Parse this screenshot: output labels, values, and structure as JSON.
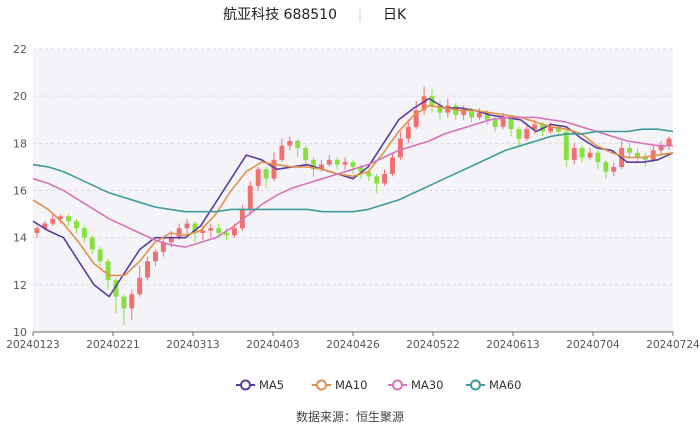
{
  "chart_data": {
    "type": "candlestick",
    "title": {
      "name": "航亚科技",
      "code": "688510",
      "period": "日K"
    },
    "ylim": [
      10,
      22
    ],
    "y_ticks": [
      "10",
      "12",
      "14",
      "16",
      "18",
      "20",
      "22"
    ],
    "x_ticks": [
      "20240123",
      "20240221",
      "20240313",
      "20240403",
      "20240426",
      "20240522",
      "20240613",
      "20240704",
      "20240724"
    ],
    "legend": {
      "placement": "bottom-center",
      "items": [
        {
          "name": "MA5",
          "color": "#5b3c9c"
        },
        {
          "name": "MA10",
          "color": "#e0914a"
        },
        {
          "name": "MA30",
          "color": "#d873b8"
        },
        {
          "name": "MA60",
          "color": "#3f9b9b"
        }
      ]
    },
    "grid": "horizontal",
    "plot_background": "#f3f3f8",
    "up_color": "#f07070",
    "down_color": "#88e040",
    "series": [
      {
        "name": "MA5",
        "values": [
          [
            0,
            14.7
          ],
          [
            5,
            14.3
          ],
          [
            10,
            14.0
          ],
          [
            15,
            13.0
          ],
          [
            20,
            12.0
          ],
          [
            25,
            11.5
          ],
          [
            30,
            12.5
          ],
          [
            35,
            13.5
          ],
          [
            40,
            14.0
          ],
          [
            45,
            14.0
          ],
          [
            50,
            14.0
          ],
          [
            55,
            14.5
          ],
          [
            60,
            15.5
          ],
          [
            65,
            16.5
          ],
          [
            70,
            17.5
          ],
          [
            75,
            17.3
          ],
          [
            80,
            16.9
          ],
          [
            85,
            17.0
          ],
          [
            90,
            17.1
          ],
          [
            95,
            16.9
          ],
          [
            100,
            16.7
          ],
          [
            105,
            16.5
          ],
          [
            110,
            17.0
          ],
          [
            115,
            18.0
          ],
          [
            120,
            19.0
          ],
          [
            125,
            19.5
          ],
          [
            130,
            19.9
          ],
          [
            135,
            19.5
          ],
          [
            140,
            19.5
          ],
          [
            145,
            19.4
          ],
          [
            150,
            19.2
          ],
          [
            155,
            19.1
          ],
          [
            160,
            19.0
          ],
          [
            165,
            18.5
          ],
          [
            170,
            18.8
          ],
          [
            175,
            18.7
          ],
          [
            180,
            18.2
          ],
          [
            185,
            17.8
          ],
          [
            190,
            17.7
          ],
          [
            195,
            17.2
          ],
          [
            200,
            17.2
          ],
          [
            205,
            17.3
          ],
          [
            210,
            17.6
          ]
        ]
      },
      {
        "name": "MA10",
        "values": [
          [
            0,
            15.6
          ],
          [
            5,
            15.2
          ],
          [
            10,
            14.6
          ],
          [
            15,
            13.8
          ],
          [
            20,
            12.9
          ],
          [
            25,
            12.4
          ],
          [
            30,
            12.4
          ],
          [
            35,
            13.0
          ],
          [
            40,
            13.8
          ],
          [
            45,
            14.2
          ],
          [
            50,
            14.1
          ],
          [
            55,
            14.3
          ],
          [
            60,
            15.0
          ],
          [
            65,
            16.0
          ],
          [
            70,
            16.8
          ],
          [
            75,
            17.2
          ],
          [
            80,
            17.1
          ],
          [
            85,
            17.0
          ],
          [
            90,
            17.0
          ],
          [
            95,
            16.9
          ],
          [
            100,
            16.7
          ],
          [
            105,
            16.6
          ],
          [
            110,
            16.8
          ],
          [
            115,
            17.6
          ],
          [
            120,
            18.5
          ],
          [
            125,
            19.2
          ],
          [
            130,
            19.6
          ],
          [
            135,
            19.5
          ],
          [
            140,
            19.4
          ],
          [
            145,
            19.4
          ],
          [
            150,
            19.3
          ],
          [
            155,
            19.2
          ],
          [
            160,
            19.1
          ],
          [
            165,
            18.9
          ],
          [
            170,
            18.7
          ],
          [
            175,
            18.6
          ],
          [
            180,
            18.4
          ],
          [
            185,
            17.9
          ],
          [
            190,
            17.6
          ],
          [
            195,
            17.4
          ],
          [
            200,
            17.4
          ],
          [
            205,
            17.5
          ],
          [
            210,
            17.6
          ]
        ]
      },
      {
        "name": "MA30",
        "values": [
          [
            0,
            16.5
          ],
          [
            5,
            16.3
          ],
          [
            10,
            16.0
          ],
          [
            15,
            15.6
          ],
          [
            20,
            15.2
          ],
          [
            25,
            14.8
          ],
          [
            30,
            14.5
          ],
          [
            35,
            14.2
          ],
          [
            40,
            13.9
          ],
          [
            45,
            13.7
          ],
          [
            50,
            13.6
          ],
          [
            55,
            13.8
          ],
          [
            60,
            14.0
          ],
          [
            65,
            14.4
          ],
          [
            70,
            14.9
          ],
          [
            75,
            15.4
          ],
          [
            80,
            15.8
          ],
          [
            85,
            16.1
          ],
          [
            90,
            16.3
          ],
          [
            95,
            16.5
          ],
          [
            100,
            16.7
          ],
          [
            105,
            16.9
          ],
          [
            110,
            17.1
          ],
          [
            115,
            17.4
          ],
          [
            120,
            17.7
          ],
          [
            125,
            17.9
          ],
          [
            130,
            18.1
          ],
          [
            135,
            18.4
          ],
          [
            140,
            18.6
          ],
          [
            145,
            18.8
          ],
          [
            150,
            19.0
          ],
          [
            155,
            19.1
          ],
          [
            160,
            19.1
          ],
          [
            165,
            19.1
          ],
          [
            170,
            19.0
          ],
          [
            175,
            18.9
          ],
          [
            180,
            18.7
          ],
          [
            185,
            18.5
          ],
          [
            190,
            18.3
          ],
          [
            195,
            18.1
          ],
          [
            200,
            18.0
          ],
          [
            205,
            17.9
          ],
          [
            210,
            17.9
          ]
        ]
      },
      {
        "name": "MA60",
        "values": [
          [
            0,
            17.1
          ],
          [
            5,
            17.0
          ],
          [
            10,
            16.8
          ],
          [
            15,
            16.5
          ],
          [
            20,
            16.2
          ],
          [
            25,
            15.9
          ],
          [
            30,
            15.7
          ],
          [
            35,
            15.5
          ],
          [
            40,
            15.3
          ],
          [
            45,
            15.2
          ],
          [
            50,
            15.1
          ],
          [
            55,
            15.1
          ],
          [
            60,
            15.1
          ],
          [
            65,
            15.2
          ],
          [
            70,
            15.2
          ],
          [
            75,
            15.2
          ],
          [
            80,
            15.2
          ],
          [
            85,
            15.2
          ],
          [
            90,
            15.2
          ],
          [
            95,
            15.1
          ],
          [
            100,
            15.1
          ],
          [
            105,
            15.1
          ],
          [
            110,
            15.2
          ],
          [
            115,
            15.4
          ],
          [
            120,
            15.6
          ],
          [
            125,
            15.9
          ],
          [
            130,
            16.2
          ],
          [
            135,
            16.5
          ],
          [
            140,
            16.8
          ],
          [
            145,
            17.1
          ],
          [
            150,
            17.4
          ],
          [
            155,
            17.7
          ],
          [
            160,
            17.9
          ],
          [
            165,
            18.1
          ],
          [
            170,
            18.3
          ],
          [
            175,
            18.4
          ],
          [
            180,
            18.4
          ],
          [
            185,
            18.5
          ],
          [
            190,
            18.5
          ],
          [
            195,
            18.5
          ],
          [
            200,
            18.6
          ],
          [
            205,
            18.6
          ],
          [
            210,
            18.5
          ]
        ]
      }
    ],
    "candles": [
      [
        14.2,
        14.4,
        14.0,
        14.5
      ],
      [
        14.4,
        14.6,
        14.3,
        14.7
      ],
      [
        14.6,
        14.8,
        14.5,
        15.0
      ],
      [
        14.8,
        14.9,
        14.6,
        15.0
      ],
      [
        14.9,
        14.7,
        14.5,
        15.0
      ],
      [
        14.7,
        14.4,
        14.2,
        14.8
      ],
      [
        14.4,
        14.0,
        13.8,
        14.5
      ],
      [
        14.0,
        13.5,
        13.3,
        14.1
      ],
      [
        13.5,
        13.0,
        12.8,
        13.6
      ],
      [
        13.0,
        12.2,
        11.8,
        13.1
      ],
      [
        12.2,
        11.5,
        10.8,
        12.3
      ],
      [
        11.5,
        11.0,
        10.3,
        11.6
      ],
      [
        11.0,
        11.6,
        10.5,
        11.8
      ],
      [
        11.6,
        12.3,
        11.5,
        12.8
      ],
      [
        12.3,
        13.0,
        12.2,
        13.2
      ],
      [
        13.0,
        13.4,
        12.8,
        13.5
      ],
      [
        13.4,
        13.8,
        13.2,
        14.0
      ],
      [
        13.8,
        14.0,
        13.6,
        14.3
      ],
      [
        14.0,
        14.4,
        13.9,
        14.6
      ],
      [
        14.4,
        14.6,
        14.1,
        14.8
      ],
      [
        14.6,
        14.2,
        13.8,
        14.7
      ],
      [
        14.2,
        14.3,
        13.9,
        14.5
      ],
      [
        14.3,
        14.4,
        14.0,
        14.6
      ],
      [
        14.4,
        14.2,
        14.0,
        14.6
      ],
      [
        14.2,
        14.1,
        13.9,
        14.4
      ],
      [
        14.1,
        14.4,
        14.0,
        14.6
      ],
      [
        14.4,
        15.2,
        14.3,
        15.4
      ],
      [
        15.2,
        16.2,
        15.0,
        16.4
      ],
      [
        16.2,
        16.9,
        16.0,
        17.0
      ],
      [
        16.9,
        16.5,
        16.1,
        17.0
      ],
      [
        16.5,
        17.3,
        16.4,
        17.6
      ],
      [
        17.3,
        17.9,
        17.2,
        18.2
      ],
      [
        17.9,
        18.1,
        17.7,
        18.3
      ],
      [
        18.1,
        17.8,
        17.4,
        18.2
      ],
      [
        17.8,
        17.3,
        17.0,
        17.9
      ],
      [
        17.3,
        16.9,
        16.6,
        17.4
      ],
      [
        16.9,
        17.1,
        16.8,
        17.3
      ],
      [
        17.1,
        17.3,
        17.0,
        17.5
      ],
      [
        17.3,
        17.1,
        16.9,
        17.4
      ],
      [
        17.1,
        17.2,
        16.9,
        17.4
      ],
      [
        17.2,
        17.0,
        16.7,
        17.3
      ],
      [
        17.0,
        16.8,
        16.5,
        17.1
      ],
      [
        16.8,
        16.6,
        16.4,
        16.9
      ],
      [
        16.6,
        16.3,
        15.9,
        16.7
      ],
      [
        16.3,
        16.7,
        16.2,
        16.9
      ],
      [
        16.7,
        17.4,
        16.6,
        17.6
      ],
      [
        17.4,
        18.2,
        17.3,
        18.5
      ],
      [
        18.2,
        18.7,
        18.0,
        19.0
      ],
      [
        18.7,
        19.4,
        18.6,
        19.8
      ],
      [
        19.4,
        20.0,
        19.2,
        20.4
      ],
      [
        20.0,
        19.6,
        19.3,
        20.3
      ],
      [
        19.6,
        19.3,
        19.0,
        19.8
      ],
      [
        19.3,
        19.6,
        19.1,
        19.9
      ],
      [
        19.6,
        19.2,
        19.0,
        19.7
      ],
      [
        19.2,
        19.4,
        19.0,
        19.6
      ],
      [
        19.4,
        19.1,
        18.9,
        19.5
      ],
      [
        19.1,
        19.3,
        19.0,
        19.5
      ],
      [
        19.3,
        19.0,
        18.8,
        19.4
      ],
      [
        19.0,
        18.7,
        18.5,
        19.1
      ],
      [
        18.7,
        19.1,
        18.6,
        19.3
      ],
      [
        19.1,
        18.6,
        18.3,
        19.2
      ],
      [
        18.6,
        18.2,
        17.9,
        18.7
      ],
      [
        18.2,
        18.6,
        18.1,
        18.8
      ],
      [
        18.6,
        18.8,
        18.4,
        19.0
      ],
      [
        18.8,
        18.5,
        18.3,
        18.9
      ],
      [
        18.5,
        18.7,
        18.4,
        18.9
      ],
      [
        18.7,
        18.5,
        18.3,
        18.8
      ],
      [
        18.5,
        17.3,
        17.0,
        18.6
      ],
      [
        17.3,
        17.8,
        17.1,
        18.0
      ],
      [
        17.8,
        17.4,
        17.2,
        17.9
      ],
      [
        17.4,
        17.6,
        17.3,
        17.8
      ],
      [
        17.6,
        17.2,
        16.9,
        17.7
      ],
      [
        17.2,
        16.8,
        16.5,
        17.3
      ],
      [
        16.8,
        17.0,
        16.6,
        17.2
      ],
      [
        17.0,
        17.8,
        16.9,
        18.1
      ],
      [
        17.8,
        17.6,
        17.4,
        18.0
      ],
      [
        17.6,
        17.4,
        17.2,
        17.8
      ],
      [
        17.4,
        17.3,
        17.0,
        17.6
      ],
      [
        17.3,
        17.7,
        17.2,
        17.9
      ],
      [
        17.7,
        17.9,
        17.5,
        18.1
      ],
      [
        17.9,
        18.2,
        17.7,
        18.3
      ]
    ]
  },
  "source": "数据来源：恒生聚源"
}
